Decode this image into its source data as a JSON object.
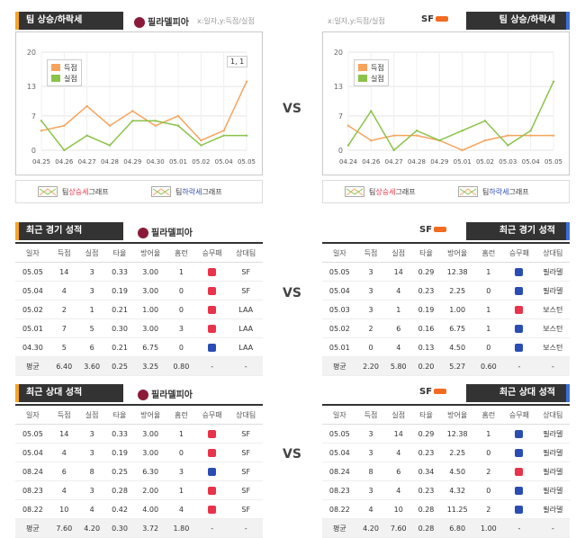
{
  "charts": {
    "left": {
      "header": "팀 상승/하락세",
      "team": "필라델피아",
      "axis_note": "x:일자,y:득점/실점",
      "legend": [
        "득점",
        "실점"
      ],
      "page_label": "1, 1",
      "btn_up": {
        "pre": "팀 ",
        "mid": "상승세",
        "post": " 그래프"
      },
      "btn_down": {
        "pre": "팀 ",
        "mid": "하락세",
        "post": " 그래프"
      }
    },
    "right": {
      "header": "팀 상승/하락세",
      "team": "SF",
      "axis_note": "x:일자,y:득점/실점",
      "legend": [
        "득점",
        "실점"
      ],
      "btn_up": {
        "pre": "팀 ",
        "mid": "상승세",
        "post": " 그래프"
      },
      "btn_down": {
        "pre": "팀 ",
        "mid": "하락세",
        "post": " 그래프"
      }
    }
  },
  "chart_data": [
    {
      "type": "line",
      "categories": [
        "04.25",
        "04.26",
        "04.27",
        "04.28",
        "04.29",
        "04.30",
        "05.01",
        "05.02",
        "05.04",
        "05.05"
      ],
      "series": [
        {
          "name": "득점",
          "values": [
            4,
            5,
            9,
            5,
            8,
            5,
            7,
            2,
            4,
            14
          ]
        },
        {
          "name": "실점",
          "values": [
            6,
            0,
            3,
            1,
            6,
            6,
            5,
            1,
            3,
            3
          ]
        }
      ],
      "ylim": [
        0,
        20
      ],
      "yticks": [
        0,
        7,
        13,
        20
      ],
      "colors": [
        "#f7a35c",
        "#8bc34a"
      ]
    },
    {
      "type": "line",
      "categories": [
        "04.24",
        "04.26",
        "04.27",
        "04.28",
        "04.29",
        "05.01",
        "05.02",
        "05.03",
        "05.04",
        "05.05"
      ],
      "series": [
        {
          "name": "득점",
          "values": [
            5,
            2,
            3,
            3,
            2,
            0,
            2,
            3,
            3,
            3
          ]
        },
        {
          "name": "실점",
          "values": [
            1,
            8,
            0,
            4,
            2,
            4,
            6,
            1,
            4,
            14
          ]
        }
      ],
      "ylim": [
        0,
        20
      ],
      "yticks": [
        0,
        7,
        13,
        20
      ],
      "colors": [
        "#f7a35c",
        "#8bc34a"
      ]
    }
  ],
  "recent": {
    "left": {
      "header": "최근 경기 성적",
      "team": "필라델피아",
      "columns": [
        "일자",
        "득점",
        "실점",
        "타율",
        "방어율",
        "홈런",
        "승무패",
        "상대팀"
      ],
      "rows": [
        [
          "05.05",
          "14",
          "3",
          "0.33",
          "3.00",
          "1",
          "W",
          "SF"
        ],
        [
          "05.04",
          "4",
          "3",
          "0.19",
          "3.00",
          "0",
          "W",
          "SF"
        ],
        [
          "05.02",
          "2",
          "1",
          "0.21",
          "1.00",
          "0",
          "W",
          "LAA"
        ],
        [
          "05.01",
          "7",
          "5",
          "0.30",
          "3.00",
          "3",
          "W",
          "LAA"
        ],
        [
          "04.30",
          "5",
          "6",
          "0.21",
          "6.75",
          "0",
          "L",
          "LAA"
        ]
      ],
      "avg": [
        "평균",
        "6.40",
        "3.60",
        "0.25",
        "3.25",
        "0.80",
        "-",
        "-"
      ]
    },
    "right": {
      "header": "최근 경기 성적",
      "team": "SF",
      "columns": [
        "일자",
        "득점",
        "실점",
        "타율",
        "방어율",
        "홈런",
        "승무패",
        "상대팀"
      ],
      "rows": [
        [
          "05.05",
          "3",
          "14",
          "0.29",
          "12.38",
          "1",
          "L",
          "필라델"
        ],
        [
          "05.04",
          "3",
          "4",
          "0.23",
          "2.25",
          "0",
          "L",
          "필라델"
        ],
        [
          "05.03",
          "3",
          "1",
          "0.19",
          "1.00",
          "1",
          "W",
          "보스턴"
        ],
        [
          "05.02",
          "2",
          "6",
          "0.16",
          "6.75",
          "1",
          "L",
          "보스턴"
        ],
        [
          "05.01",
          "0",
          "4",
          "0.13",
          "4.50",
          "0",
          "L",
          "보스턴"
        ]
      ],
      "avg": [
        "평균",
        "2.20",
        "5.80",
        "0.20",
        "5.27",
        "0.60",
        "-",
        "-"
      ]
    }
  },
  "h2h": {
    "left": {
      "header": "최근 상대 성적",
      "team": "필라델피아",
      "columns": [
        "일자",
        "득점",
        "실점",
        "타율",
        "방어율",
        "홈런",
        "승무패",
        "상대팀"
      ],
      "rows": [
        [
          "05.05",
          "14",
          "3",
          "0.33",
          "3.00",
          "1",
          "W",
          "SF"
        ],
        [
          "05.04",
          "4",
          "3",
          "0.19",
          "3.00",
          "0",
          "W",
          "SF"
        ],
        [
          "08.24",
          "6",
          "8",
          "0.25",
          "6.30",
          "3",
          "L",
          "SF"
        ],
        [
          "08.23",
          "4",
          "3",
          "0.28",
          "2.00",
          "1",
          "W",
          "SF"
        ],
        [
          "08.22",
          "10",
          "4",
          "0.42",
          "4.00",
          "4",
          "W",
          "SF"
        ]
      ],
      "avg": [
        "평균",
        "7.60",
        "4.20",
        "0.30",
        "3.72",
        "1.80",
        "-",
        "-"
      ]
    },
    "right": {
      "header": "최근 상대 성적",
      "team": "SF",
      "columns": [
        "일자",
        "득점",
        "실점",
        "타율",
        "방어율",
        "홈런",
        "승무패",
        "상대팀"
      ],
      "rows": [
        [
          "05.05",
          "3",
          "14",
          "0.29",
          "12.38",
          "1",
          "L",
          "필라델"
        ],
        [
          "05.04",
          "3",
          "4",
          "0.23",
          "2.25",
          "0",
          "L",
          "필라델"
        ],
        [
          "08.24",
          "8",
          "6",
          "0.34",
          "4.50",
          "2",
          "W",
          "필라델"
        ],
        [
          "08.23",
          "3",
          "4",
          "0.23",
          "4.32",
          "0",
          "L",
          "필라델"
        ],
        [
          "08.22",
          "4",
          "10",
          "0.28",
          "11.25",
          "2",
          "L",
          "필라델"
        ]
      ],
      "avg": [
        "평균",
        "4.20",
        "7.60",
        "0.28",
        "6.80",
        "1.00",
        "-",
        "-"
      ]
    }
  },
  "vs_label": "VS",
  "colors": {
    "win": "#e8334a",
    "loss": "#2a4db3",
    "up": "#e8334a",
    "down": "#2a4db3",
    "accent_left": "#f5a623",
    "accent_right": "#3a6fd6"
  }
}
